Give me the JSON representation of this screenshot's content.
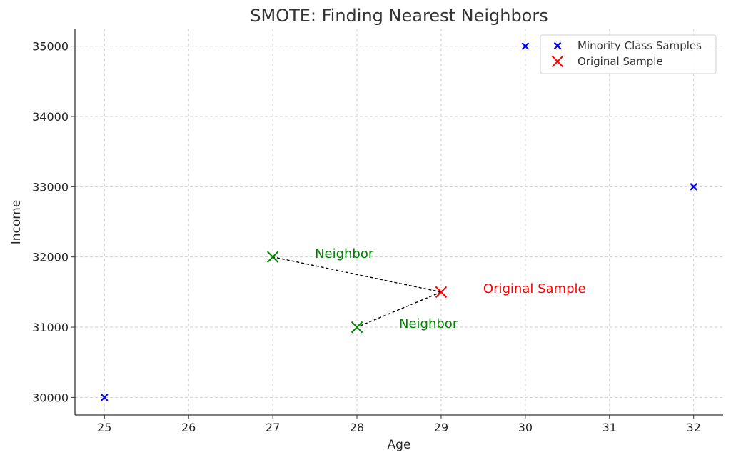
{
  "chart_data": {
    "type": "scatter",
    "title": "SMOTE: Finding Nearest Neighbors",
    "xlabel": "Age",
    "ylabel": "Income",
    "xlim": [
      24.65,
      32.35
    ],
    "ylim": [
      29750,
      35250
    ],
    "xticks": [
      25,
      26,
      27,
      28,
      29,
      30,
      31,
      32
    ],
    "yticks": [
      30000,
      31000,
      32000,
      33000,
      34000,
      35000
    ],
    "grid": true,
    "legend_position": "top-right",
    "series": [
      {
        "name": "Minority Class Samples",
        "color": "#0000ff",
        "marker": "x-small",
        "x": [
          25,
          30,
          32
        ],
        "y": [
          30000,
          35000,
          33000
        ]
      },
      {
        "name": "Original Sample",
        "color": "#ff0000",
        "marker": "x-large",
        "x": [
          29
        ],
        "y": [
          31500
        ]
      },
      {
        "color": "#008000",
        "marker": "x-large",
        "x": [
          27,
          28
        ],
        "y": [
          32000,
          31000
        ]
      }
    ],
    "connectors": [
      {
        "from": [
          29,
          31500
        ],
        "to": [
          27,
          32000
        ],
        "style": "dashed",
        "color": "#000000"
      },
      {
        "from": [
          29,
          31500
        ],
        "to": [
          28,
          31000
        ],
        "style": "dashed",
        "color": "#000000"
      }
    ],
    "annotations": [
      {
        "text": "Neighbor",
        "x": 27.5,
        "y": 32050,
        "color": "#008000"
      },
      {
        "text": "Neighbor",
        "x": 28.5,
        "y": 31050,
        "color": "#008000"
      },
      {
        "text": "Original Sample",
        "x": 29.5,
        "y": 31550,
        "color": "#ff0000"
      }
    ]
  }
}
